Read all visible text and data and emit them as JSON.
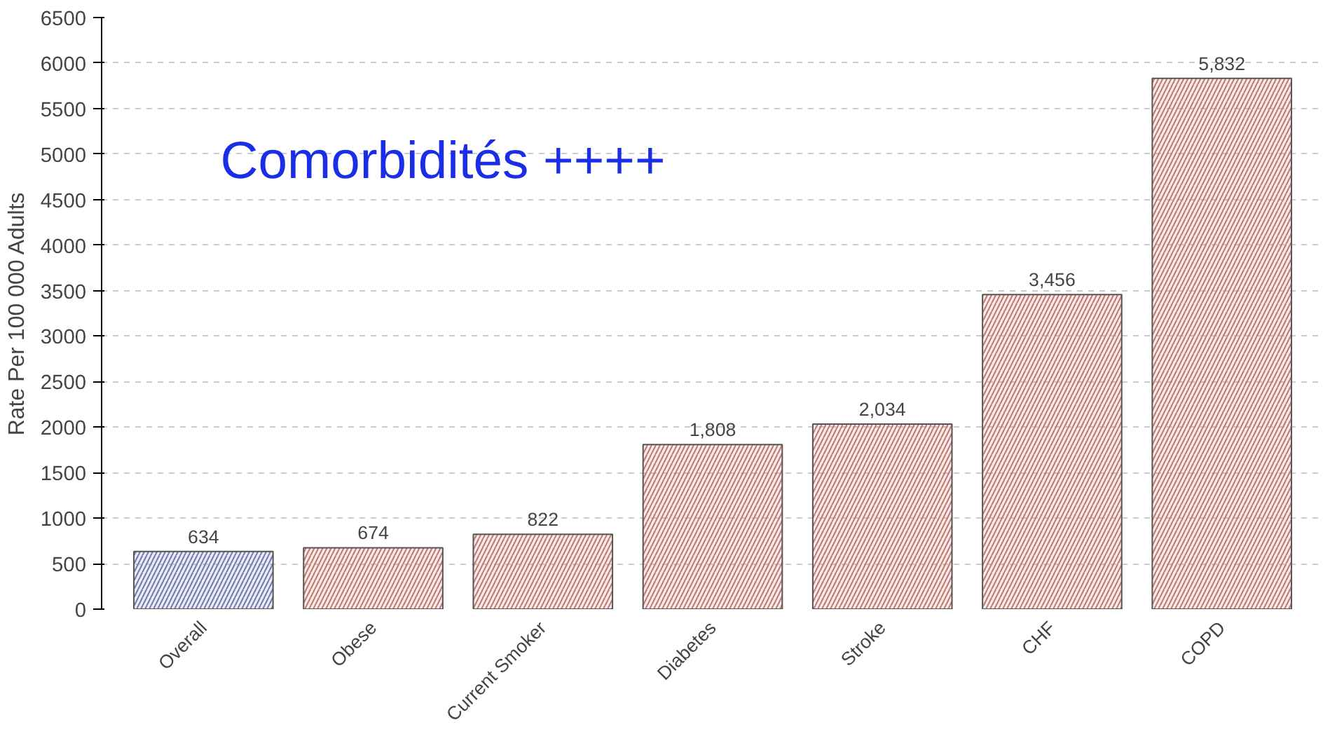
{
  "chart_data": {
    "type": "bar",
    "ylabel": "Rate Per 100 000 Adults",
    "annotations": [
      "Comorbidités ++++"
    ],
    "categories": [
      "Overall",
      "Obese",
      "Current Smoker",
      "Diabetes",
      "Stroke",
      "CHF",
      "COPD"
    ],
    "values": [
      634,
      674,
      822,
      1808,
      2034,
      3456,
      5832
    ],
    "value_labels": [
      "634",
      "674",
      "822",
      "1,808",
      "2,034",
      "3,456",
      "5,832"
    ],
    "colors": [
      "#6f78b0",
      "#c0766e",
      "#c0766e",
      "#c0766e",
      "#c0766e",
      "#c0766e",
      "#c0766e"
    ],
    "ylim": [
      0,
      6500
    ],
    "yticks": [
      0,
      500,
      1000,
      1500,
      2000,
      2500,
      3000,
      3500,
      4000,
      4500,
      5000,
      5500,
      6000,
      6500
    ],
    "grid": "y"
  }
}
